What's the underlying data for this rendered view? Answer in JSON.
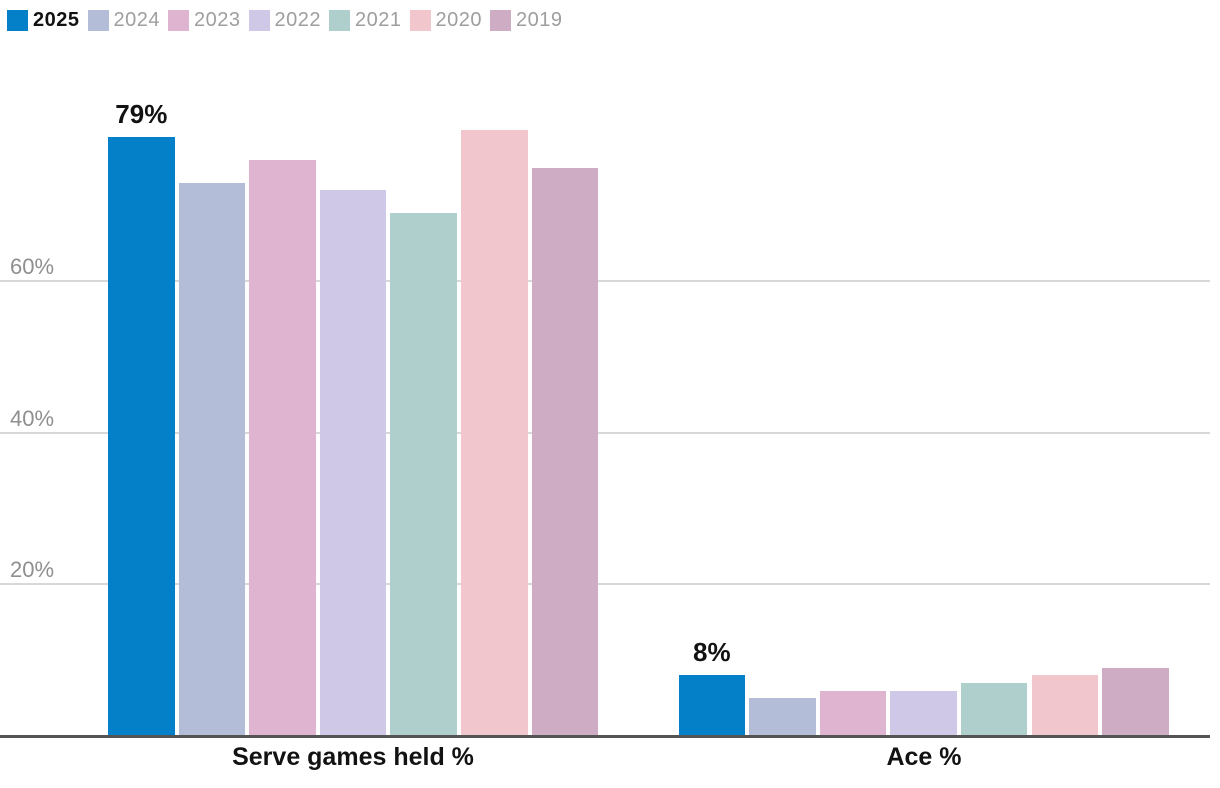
{
  "chart_data": {
    "type": "bar",
    "title": "",
    "categories": [
      "Serve games held %",
      "Ace %"
    ],
    "series": [
      {
        "name": "2025",
        "color": "#0380c8",
        "values": [
          79,
          8
        ],
        "value_labels": [
          "79%",
          "8%"
        ],
        "emphasized": true
      },
      {
        "name": "2024",
        "color": "#b3bdd7",
        "values": [
          73,
          5
        ]
      },
      {
        "name": "2023",
        "color": "#dfb4d0",
        "values": [
          76,
          6
        ]
      },
      {
        "name": "2022",
        "color": "#cfc9e7",
        "values": [
          72,
          6
        ]
      },
      {
        "name": "2021",
        "color": "#aecfcc",
        "values": [
          69,
          7
        ]
      },
      {
        "name": "2020",
        "color": "#f1c6cd",
        "values": [
          80,
          8
        ]
      },
      {
        "name": "2019",
        "color": "#cdacc4",
        "values": [
          75,
          9
        ]
      }
    ],
    "yticks": [
      {
        "value": 20,
        "label": "20%"
      },
      {
        "value": 40,
        "label": "40%"
      },
      {
        "value": 60,
        "label": "60%"
      }
    ],
    "ylim": [
      0,
      82
    ],
    "grid": true,
    "legend_position": "top-left",
    "xlabel": "",
    "ylabel": ""
  },
  "colors": {
    "grid_line": "#d8d8d8",
    "axis_line": "#545454",
    "tick_label": "#8f8f8f",
    "legend_inactive": "#9e9e9e",
    "text": "#121212"
  }
}
